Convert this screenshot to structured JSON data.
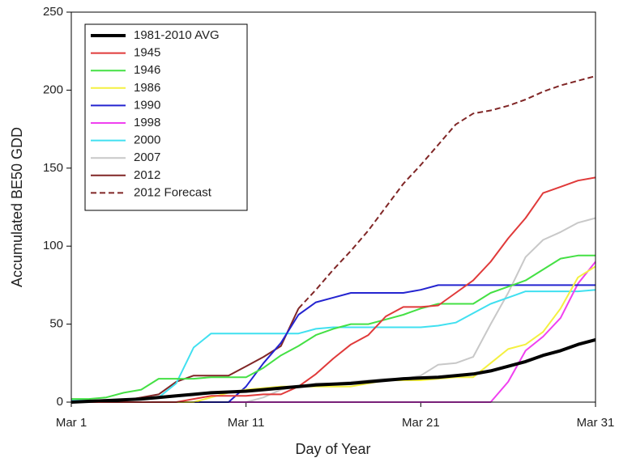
{
  "chart_data": {
    "type": "line",
    "x_label": "Day of Year",
    "y_label": "Accumulated BE50 GDD",
    "x": [
      1,
      2,
      3,
      4,
      5,
      6,
      7,
      8,
      9,
      10,
      11,
      12,
      13,
      14,
      15,
      16,
      17,
      18,
      19,
      20,
      21,
      22,
      23,
      24,
      25,
      26,
      27,
      28,
      29,
      30,
      31
    ],
    "xlim": [
      1,
      31
    ],
    "xticks": [
      {
        "value": 1,
        "label": "Mar 1"
      },
      {
        "value": 11,
        "label": "Mar 11"
      },
      {
        "value": 21,
        "label": "Mar 21"
      },
      {
        "value": 31,
        "label": "Mar 31"
      }
    ],
    "ylim": [
      0,
      250
    ],
    "yticks": [
      0,
      50,
      100,
      150,
      200,
      250
    ],
    "legend": "upper-left",
    "series": [
      {
        "name": "1981-2010 AVG",
        "color": "#000000",
        "width": 4,
        "values": [
          0,
          0.5,
          1,
          1.5,
          2,
          3,
          4,
          5,
          6,
          6.5,
          7,
          8,
          9,
          10,
          11,
          11.5,
          12,
          13,
          14,
          15,
          15.5,
          16,
          17,
          18,
          20,
          23,
          26,
          30,
          33,
          37,
          40
        ]
      },
      {
        "name": "1945",
        "color": "#e03a3a",
        "values": [
          0,
          0,
          0,
          0,
          0,
          0,
          0,
          2,
          4,
          4,
          4,
          5,
          5,
          10,
          18,
          28,
          37,
          43,
          55,
          61,
          61,
          62,
          70,
          78,
          90,
          105,
          118,
          134,
          138,
          142,
          144
        ]
      },
      {
        "name": "1946",
        "color": "#44e044",
        "values": [
          2,
          2,
          3,
          6,
          8,
          15,
          15,
          15,
          16,
          16,
          16,
          22,
          30,
          36,
          43,
          47,
          50,
          50,
          53,
          56,
          60,
          63,
          63,
          63,
          70,
          74,
          78,
          85,
          92,
          94,
          94
        ]
      },
      {
        "name": "1986",
        "color": "#f4f040",
        "values": [
          0,
          0,
          0,
          0,
          0,
          0,
          0,
          0,
          3,
          6,
          8,
          9,
          10,
          10,
          10,
          10,
          10,
          12,
          14,
          14,
          14,
          15,
          16,
          16,
          25,
          34,
          37,
          45,
          60,
          80,
          87
        ]
      },
      {
        "name": "1990",
        "color": "#2424d0",
        "values": [
          0,
          0,
          0,
          0,
          0,
          0,
          0,
          0,
          0,
          0,
          10,
          25,
          38,
          56,
          64,
          67,
          70,
          70,
          70,
          70,
          72,
          75,
          75,
          75,
          75,
          75,
          75,
          75,
          75,
          75,
          75
        ]
      },
      {
        "name": "1998",
        "color": "#f040f0",
        "values": [
          0,
          0,
          0,
          0,
          0,
          0,
          0,
          0,
          0,
          0,
          0,
          0,
          0,
          0,
          0,
          0,
          0,
          0,
          0,
          0,
          0,
          0,
          0,
          0,
          0,
          13,
          33,
          42,
          54,
          76,
          90
        ]
      },
      {
        "name": "2000",
        "color": "#40e0f0",
        "values": [
          1,
          1,
          1,
          1,
          2,
          3,
          12,
          35,
          44,
          44,
          44,
          44,
          44,
          44,
          47,
          48,
          48,
          48,
          48,
          48,
          48,
          49,
          51,
          57,
          63,
          67,
          71,
          71,
          71,
          71,
          72
        ]
      },
      {
        "name": "2007",
        "color": "#c8c8c8",
        "values": [
          0,
          0,
          0,
          0,
          0,
          0,
          0,
          0,
          0,
          0,
          0,
          3,
          8,
          10,
          12,
          12,
          13,
          14,
          15,
          15,
          17,
          24,
          25,
          29,
          50,
          70,
          93,
          104,
          109,
          115,
          118
        ]
      },
      {
        "name": "2012",
        "color": "#802626",
        "values": [
          0,
          0,
          0,
          1,
          3,
          5,
          13,
          17,
          17,
          17,
          23,
          29,
          36,
          60,
          null,
          null,
          null,
          null,
          null,
          null,
          null,
          null,
          null,
          null,
          null,
          null,
          null,
          null,
          null,
          null,
          null
        ]
      },
      {
        "name": "2012 Forecast",
        "color": "#802626",
        "dash": true,
        "values": [
          null,
          null,
          null,
          null,
          null,
          null,
          null,
          null,
          null,
          null,
          null,
          null,
          null,
          60,
          72,
          85,
          97,
          110,
          125,
          140,
          152,
          165,
          178,
          185,
          187,
          190,
          194,
          199,
          203,
          206,
          209
        ]
      }
    ]
  }
}
